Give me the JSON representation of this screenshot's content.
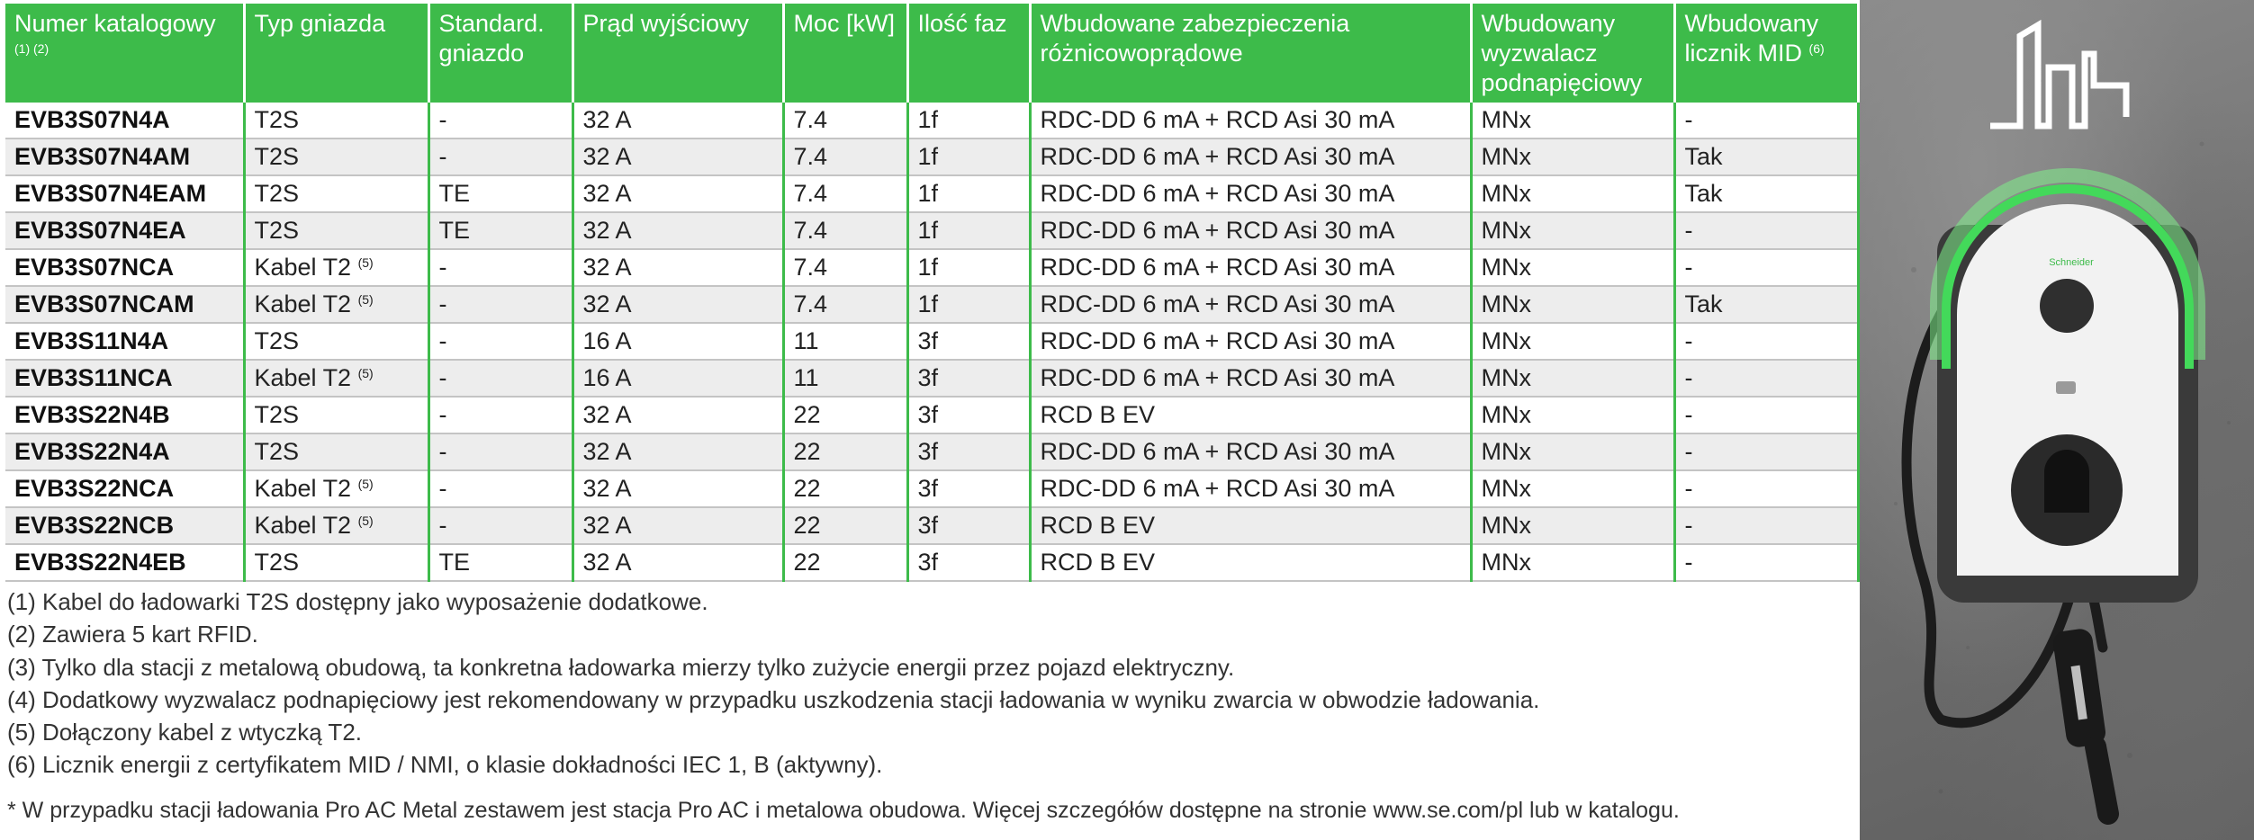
{
  "table": {
    "headers": [
      {
        "text": "Numer katalogowy",
        "sup": "(1) (2)"
      },
      {
        "text": "Typ gniazda",
        "sup": ""
      },
      {
        "text": "Standard. gniazdo",
        "sup": ""
      },
      {
        "text": "Prąd wyjściowy",
        "sup": ""
      },
      {
        "text": "Moc [kW]",
        "sup": ""
      },
      {
        "text": "Ilość faz",
        "sup": ""
      },
      {
        "text": "Wbudowane zabezpieczenia różnicowoprądowe",
        "sup": ""
      },
      {
        "text": "Wbudowany wyzwalacz podnapięciowy",
        "sup": ""
      },
      {
        "text": "Wbudowany licznik MID",
        "sup": "(6)"
      }
    ],
    "rows": [
      [
        {
          "text": "EVB3S07N4A"
        },
        {
          "text": "T2S"
        },
        {
          "text": "-"
        },
        {
          "text": "32 A"
        },
        {
          "text": "7.4"
        },
        {
          "text": "1f"
        },
        {
          "text": "RDC-DD 6 mA + RCD Asi 30 mA"
        },
        {
          "text": "MNx"
        },
        {
          "text": "-"
        }
      ],
      [
        {
          "text": "EVB3S07N4AM"
        },
        {
          "text": "T2S"
        },
        {
          "text": "-"
        },
        {
          "text": "32 A"
        },
        {
          "text": "7.4"
        },
        {
          "text": "1f"
        },
        {
          "text": "RDC-DD 6 mA + RCD Asi 30 mA"
        },
        {
          "text": "MNx"
        },
        {
          "text": "Tak"
        }
      ],
      [
        {
          "text": "EVB3S07N4EAM"
        },
        {
          "text": "T2S"
        },
        {
          "text": "TE"
        },
        {
          "text": "32 A"
        },
        {
          "text": "7.4"
        },
        {
          "text": "1f"
        },
        {
          "text": "RDC-DD 6 mA + RCD Asi 30 mA"
        },
        {
          "text": "MNx"
        },
        {
          "text": "Tak"
        }
      ],
      [
        {
          "text": "EVB3S07N4EA"
        },
        {
          "text": "T2S"
        },
        {
          "text": "TE"
        },
        {
          "text": "32 A"
        },
        {
          "text": "7.4"
        },
        {
          "text": "1f"
        },
        {
          "text": "RDC-DD 6 mA + RCD Asi 30 mA"
        },
        {
          "text": "MNx"
        },
        {
          "text": "-"
        }
      ],
      [
        {
          "text": "EVB3S07NCA"
        },
        {
          "text": "Kabel T2",
          "sup": "(5)"
        },
        {
          "text": "-"
        },
        {
          "text": "32 A"
        },
        {
          "text": "7.4"
        },
        {
          "text": "1f"
        },
        {
          "text": "RDC-DD 6 mA + RCD Asi 30 mA"
        },
        {
          "text": "MNx"
        },
        {
          "text": "-"
        }
      ],
      [
        {
          "text": "EVB3S07NCAM"
        },
        {
          "text": "Kabel T2",
          "sup": "(5)"
        },
        {
          "text": "-"
        },
        {
          "text": "32 A"
        },
        {
          "text": "7.4"
        },
        {
          "text": "1f"
        },
        {
          "text": "RDC-DD 6 mA + RCD Asi 30 mA"
        },
        {
          "text": "MNx"
        },
        {
          "text": "Tak"
        }
      ],
      [
        {
          "text": "EVB3S11N4A"
        },
        {
          "text": "T2S"
        },
        {
          "text": "-"
        },
        {
          "text": "16 A"
        },
        {
          "text": "11"
        },
        {
          "text": "3f"
        },
        {
          "text": "RDC-DD 6 mA + RCD Asi 30 mA"
        },
        {
          "text": "MNx"
        },
        {
          "text": "-"
        }
      ],
      [
        {
          "text": "EVB3S11NCA"
        },
        {
          "text": "Kabel T2",
          "sup": "(5)"
        },
        {
          "text": "-"
        },
        {
          "text": "16 A"
        },
        {
          "text": "11"
        },
        {
          "text": "3f"
        },
        {
          "text": "RDC-DD 6 mA + RCD Asi 30 mA"
        },
        {
          "text": "MNx"
        },
        {
          "text": "-"
        }
      ],
      [
        {
          "text": "EVB3S22N4B"
        },
        {
          "text": "T2S"
        },
        {
          "text": "-"
        },
        {
          "text": "32 A"
        },
        {
          "text": "22"
        },
        {
          "text": "3f"
        },
        {
          "text": "RCD B EV"
        },
        {
          "text": "MNx"
        },
        {
          "text": "-"
        }
      ],
      [
        {
          "text": "EVB3S22N4A"
        },
        {
          "text": "T2S"
        },
        {
          "text": "-"
        },
        {
          "text": "32 A"
        },
        {
          "text": "22"
        },
        {
          "text": "3f"
        },
        {
          "text": "RDC-DD 6 mA + RCD Asi 30 mA"
        },
        {
          "text": "MNx"
        },
        {
          "text": "-"
        }
      ],
      [
        {
          "text": "EVB3S22NCA"
        },
        {
          "text": "Kabel T2",
          "sup": "(5)"
        },
        {
          "text": "-"
        },
        {
          "text": "32 A"
        },
        {
          "text": "22"
        },
        {
          "text": "3f"
        },
        {
          "text": "RDC-DD 6 mA + RCD Asi 30 mA"
        },
        {
          "text": "MNx"
        },
        {
          "text": "-"
        }
      ],
      [
        {
          "text": "EVB3S22NCB"
        },
        {
          "text": "Kabel T2",
          "sup": "(5)"
        },
        {
          "text": "-"
        },
        {
          "text": "32 A"
        },
        {
          "text": "22"
        },
        {
          "text": "3f"
        },
        {
          "text": "RCD B EV"
        },
        {
          "text": "MNx"
        },
        {
          "text": "-"
        }
      ],
      [
        {
          "text": "EVB3S22N4EB"
        },
        {
          "text": "T2S"
        },
        {
          "text": "TE"
        },
        {
          "text": "32 A"
        },
        {
          "text": "22"
        },
        {
          "text": "3f"
        },
        {
          "text": "RCD B EV"
        },
        {
          "text": "MNx"
        },
        {
          "text": "-"
        }
      ]
    ]
  },
  "notes": [
    "(1) Kabel do ładowarki T2S dostępny jako wyposażenie dodatkowe.",
    "(2) Zawiera 5 kart RFID.",
    "(3) Tylko dla stacji z metalową obudową, ta konkretna ładowarka mierzy tylko zużycie energii przez pojazd elektryczny.",
    "(4) Dodatkowy wyzwalacz podnapięciowy jest rekomendowany w przypadku uszkodzenia stacji ładowania w wyniku zwarcia w obwodzie ładowania.",
    "(5) Dołączony kabel z wtyczką T2.",
    "(6) Licznik energii z certyfikatem MID / NMI, o klasie dokładności IEC 1, B (aktywny)."
  ],
  "footnote": "* W przypadku stacji ładowania Pro AC Metal zestawem jest stacja Pro AC i metalowa obudowa. Więcej szczegółów dostępne na stronie www.se.com/pl lub w katalogu.",
  "photo": {
    "brand_label": "Schneider",
    "colors": {
      "accent_green": "#3dbb4a",
      "wall": "#7a7a7a",
      "charger_body": "#f2f2f2",
      "charger_back": "#3a3a3a"
    }
  }
}
